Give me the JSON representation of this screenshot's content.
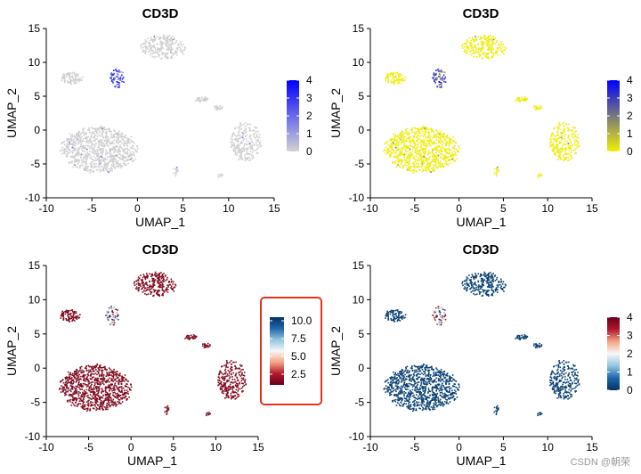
{
  "chart_data": [
    {
      "type": "scatter",
      "title": "CD3D",
      "xlabel": "UMAP_1",
      "ylabel": "UMAP_2",
      "xlim": [
        -10,
        15
      ],
      "ylim": [
        -10,
        15
      ],
      "xticks": [
        "-10",
        "-5",
        "0",
        "5",
        "10",
        "15"
      ],
      "yticks": [
        "-10",
        "-5",
        "0",
        "5",
        "10",
        "15"
      ],
      "colors": [
        "#d3d3d3",
        "#0000ff"
      ],
      "background_color": "#d3d3d3",
      "point_color": "#cfcfcf",
      "legend": {
        "type": "colorbar",
        "placement": "right",
        "range": [
          0,
          4
        ],
        "ticks": [
          "0",
          "1",
          "2",
          "3",
          "4"
        ]
      },
      "highlight_box": false
    },
    {
      "type": "scatter",
      "title": "CD3D",
      "xlabel": "UMAP_1",
      "ylabel": "UMAP_2",
      "xlim": [
        -10,
        15
      ],
      "ylim": [
        -10,
        15
      ],
      "xticks": [
        "-10",
        "-5",
        "0",
        "5",
        "10",
        "15"
      ],
      "yticks": [
        "-10",
        "-5",
        "0",
        "5",
        "10",
        "15"
      ],
      "colors": [
        "#f0f000",
        "#0000ff"
      ],
      "background_color": "#f0f000",
      "point_color": "#eeee1a",
      "legend": {
        "type": "colorbar",
        "placement": "right",
        "range": [
          0,
          4
        ],
        "ticks": [
          "0",
          "1",
          "2",
          "3",
          "4"
        ]
      },
      "highlight_box": false
    },
    {
      "type": "scatter",
      "title": "CD3D",
      "xlabel": "UMAP_1",
      "ylabel": "UMAP_2",
      "xlim": [
        -10,
        15
      ],
      "ylim": [
        -10,
        15
      ],
      "xticks": [
        "-10",
        "-5",
        "0",
        "5",
        "10",
        "15"
      ],
      "yticks": [
        "-10",
        "-5",
        "0",
        "5",
        "10",
        "15"
      ],
      "colors": [
        "#67001f",
        "#b2182b",
        "#f4a582",
        "#f7f7f7",
        "#92c5de",
        "#2166ac",
        "#053061"
      ],
      "background_color": "#7a0c1e",
      "point_color": "#800d22",
      "legend": {
        "type": "colorbar",
        "placement": "right",
        "range": [
          1,
          10.5
        ],
        "ticks": [
          "2.5",
          "5.0",
          "7.5",
          "10.0"
        ],
        "tick_values": [
          2.5,
          5.0,
          7.5,
          10.0
        ]
      },
      "highlight_box": true,
      "highlight_color": "#e8321e"
    },
    {
      "type": "scatter",
      "title": "CD3D",
      "xlabel": "UMAP_1",
      "ylabel": "UMAP_2",
      "xlim": [
        -10,
        15
      ],
      "ylim": [
        -10,
        15
      ],
      "xticks": [
        "-10",
        "-5",
        "0",
        "5",
        "10",
        "15"
      ],
      "yticks": [
        "-10",
        "-5",
        "0",
        "5",
        "10",
        "15"
      ],
      "colors": [
        "#053061",
        "#2166ac",
        "#92c5de",
        "#f7f7f7",
        "#f4a582",
        "#b2182b",
        "#67001f"
      ],
      "background_color": "#0b3d6e",
      "point_color": "#0d4273",
      "legend": {
        "type": "colorbar",
        "placement": "right",
        "range": [
          0,
          4
        ],
        "ticks": [
          "0",
          "1",
          "2",
          "3",
          "4"
        ]
      },
      "highlight_box": false
    }
  ],
  "clusters": [
    {
      "cx": 2.8,
      "cy": 12.3,
      "rx": 2.5,
      "ry": 1.8,
      "n": 260
    },
    {
      "cx": -7.3,
      "cy": 7.8,
      "rx": 1.2,
      "ry": 0.9,
      "n": 90
    },
    {
      "cx": -2.3,
      "cy": 7.8,
      "rx": 0.8,
      "ry": 1.4,
      "n": 60
    },
    {
      "cx": -4.3,
      "cy": -2.8,
      "rx": 4.2,
      "ry": 3.4,
      "n": 900
    },
    {
      "cx": 11.8,
      "cy": -1.6,
      "rx": 1.7,
      "ry": 2.9,
      "n": 250
    },
    {
      "cx": 7.0,
      "cy": 4.6,
      "rx": 0.8,
      "ry": 0.4,
      "n": 30
    },
    {
      "cx": 8.7,
      "cy": 3.4,
      "rx": 0.6,
      "ry": 0.4,
      "n": 20
    },
    {
      "cx": 4.1,
      "cy": -6.0,
      "rx": 0.3,
      "ry": 0.8,
      "n": 14
    },
    {
      "cx": 9.0,
      "cy": -6.6,
      "rx": 0.3,
      "ry": 0.3,
      "n": 8
    }
  ],
  "watermark": "CSDN @朝荣"
}
